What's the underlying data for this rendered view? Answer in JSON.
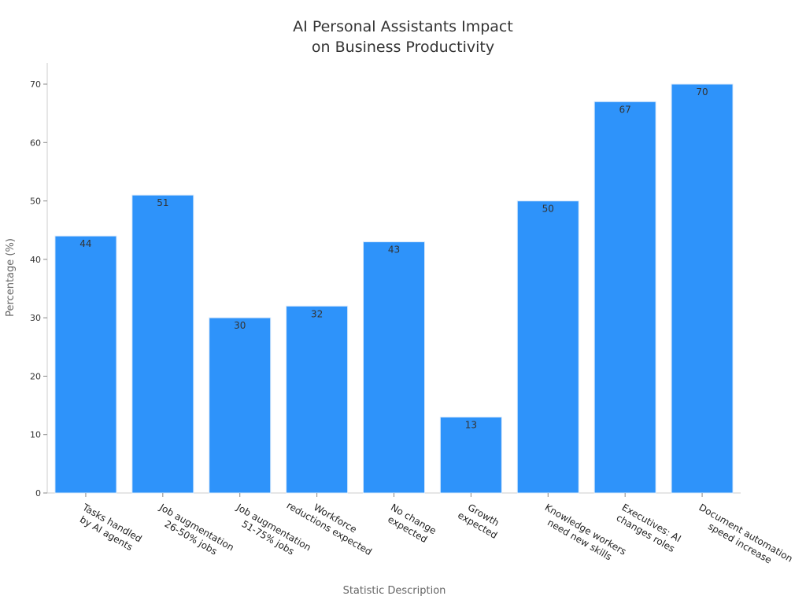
{
  "chart_data": {
    "type": "bar",
    "title": [
      "AI Personal Assistants Impact",
      "on Business Productivity"
    ],
    "xlabel": "Statistic Description",
    "ylabel": "Percentage (%)",
    "categories": [
      [
        "Tasks handled",
        "by AI agents"
      ],
      [
        "Job augmentation",
        "26-50% jobs"
      ],
      [
        "Job augmentation",
        "51-75% jobs"
      ],
      [
        "Workforce",
        "reductions expected"
      ],
      [
        "No change",
        "expected"
      ],
      [
        "Growth",
        "expected"
      ],
      [
        "Knowledge workers",
        "need new skills"
      ],
      [
        "Executives: AI",
        "changes roles"
      ],
      [
        "Document automation",
        "speed increase"
      ]
    ],
    "values": [
      44,
      51,
      30,
      32,
      43,
      13,
      50,
      67,
      70
    ],
    "ylim": [
      0,
      70
    ],
    "yticks": [
      0,
      10,
      20,
      30,
      40,
      50,
      60,
      70
    ],
    "grid": false,
    "data_labels": true,
    "bar_color": "#2E93FA"
  }
}
